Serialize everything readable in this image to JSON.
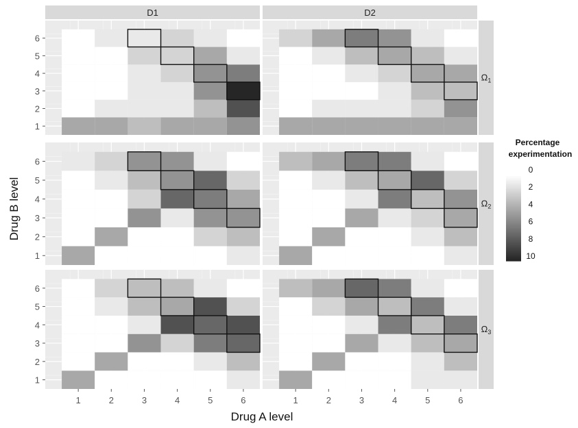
{
  "chart_data": {
    "type": "heatmap",
    "title": "",
    "xlabel": "Drug A level",
    "ylabel": "Drug B level",
    "x": [
      1,
      2,
      3,
      4,
      5,
      6
    ],
    "y": [
      1,
      2,
      3,
      4,
      5,
      6
    ],
    "xlim": [
      0.5,
      6.5
    ],
    "ylim": [
      0.5,
      6.5
    ],
    "columns": [
      "D1",
      "D2"
    ],
    "rows": [
      "Ω1",
      "Ω2",
      "Ω3"
    ],
    "grid": true,
    "legend": {
      "title_line1": "Percentage",
      "title_line2": "experimentation",
      "placement": "right",
      "ticks": [
        0,
        2,
        4,
        6,
        8,
        10
      ],
      "range": [
        0,
        10
      ]
    },
    "outlined_cells": [
      [
        3,
        6
      ],
      [
        4,
        5
      ],
      [
        5,
        4
      ],
      [
        6,
        3
      ]
    ],
    "panels": [
      {
        "row": "Ω1",
        "column": "D1",
        "values": [
          [
            4,
            4,
            3,
            4,
            4,
            5
          ],
          [
            0,
            1,
            1,
            1,
            3,
            8
          ],
          [
            0,
            0,
            1,
            1,
            5,
            10
          ],
          [
            0,
            0,
            1,
            2,
            5,
            6
          ],
          [
            0,
            0,
            2,
            2,
            4,
            1
          ],
          [
            0,
            1,
            1,
            2,
            1,
            0
          ]
        ]
      },
      {
        "row": "Ω1",
        "column": "D2",
        "values": [
          [
            4,
            4,
            4,
            4,
            4,
            4
          ],
          [
            0,
            1,
            1,
            1,
            2,
            5
          ],
          [
            0,
            0,
            0,
            1,
            3,
            3
          ],
          [
            0,
            0,
            1,
            2,
            4,
            4
          ],
          [
            0,
            1,
            3,
            4,
            3,
            1
          ],
          [
            2,
            4,
            6,
            5,
            1,
            0
          ]
        ]
      },
      {
        "row": "Ω2",
        "column": "D1",
        "values": [
          [
            4,
            0,
            0,
            0,
            0,
            1
          ],
          [
            0,
            4,
            0,
            0,
            2,
            3
          ],
          [
            0,
            0,
            5,
            1,
            5,
            5
          ],
          [
            0,
            0,
            2,
            7,
            6,
            4
          ],
          [
            0,
            1,
            3,
            5,
            7,
            2
          ],
          [
            1,
            2,
            5,
            5,
            1,
            0
          ]
        ]
      },
      {
        "row": "Ω2",
        "column": "D2",
        "values": [
          [
            4,
            0,
            0,
            0,
            0,
            1
          ],
          [
            0,
            4,
            0,
            0,
            1,
            3
          ],
          [
            0,
            0,
            4,
            1,
            2,
            4
          ],
          [
            0,
            0,
            1,
            6,
            3,
            5
          ],
          [
            0,
            1,
            3,
            4,
            7,
            2
          ],
          [
            3,
            4,
            6,
            6,
            1,
            0
          ]
        ]
      },
      {
        "row": "Ω3",
        "column": "D1",
        "values": [
          [
            4,
            0,
            0,
            0,
            0,
            1
          ],
          [
            0,
            4,
            0,
            0,
            1,
            3
          ],
          [
            0,
            0,
            5,
            2,
            6,
            7
          ],
          [
            0,
            0,
            1,
            8,
            7,
            8
          ],
          [
            0,
            1,
            3,
            4,
            8,
            2
          ],
          [
            0,
            2,
            3,
            3,
            1,
            0
          ]
        ]
      },
      {
        "row": "Ω3",
        "column": "D2",
        "values": [
          [
            4,
            0,
            0,
            0,
            1,
            1
          ],
          [
            0,
            4,
            0,
            0,
            1,
            3
          ],
          [
            0,
            0,
            4,
            1,
            3,
            4
          ],
          [
            0,
            0,
            1,
            6,
            3,
            6
          ],
          [
            0,
            2,
            4,
            3,
            6,
            1
          ],
          [
            3,
            4,
            7,
            6,
            1,
            0
          ]
        ]
      }
    ]
  }
}
